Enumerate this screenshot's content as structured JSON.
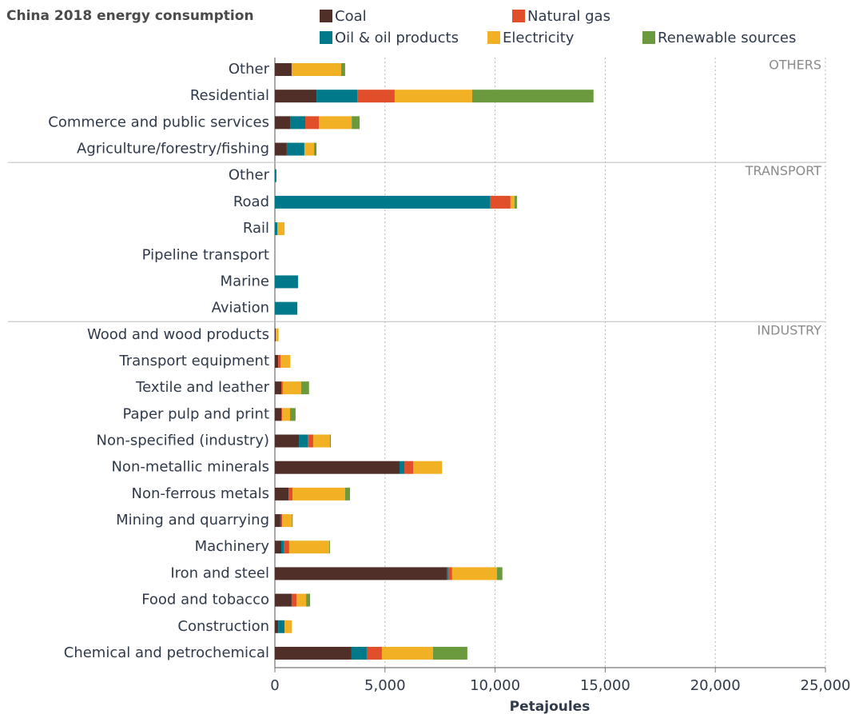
{
  "chart_data": {
    "type": "stacked_barh",
    "title": "China 2018 energy consumption",
    "x_label": "Petajoules",
    "categories": [
      "Other",
      "Residential",
      "Commerce and public services",
      "Agriculture/forestry/fishing",
      "Other",
      "Road",
      "Rail",
      "Pipeline transport",
      "Marine",
      "Aviation",
      "Wood and wood products",
      "Transport equipment",
      "Textile and leather",
      "Paper pulp and print",
      "Non-specified (industry)",
      "Non-metallic minerals",
      "Non-ferrous metals",
      "Mining and quarrying",
      "Machinery",
      "Iron and steel",
      "Food and tobacco",
      "Construction",
      "Chemical and petrochemical"
    ],
    "category_groups": [
      "OTHERS",
      "OTHERS",
      "OTHERS",
      "OTHERS",
      "TRANSPORT",
      "TRANSPORT",
      "TRANSPORT",
      "TRANSPORT",
      "TRANSPORT",
      "TRANSPORT",
      "INDUSTRY",
      "INDUSTRY",
      "INDUSTRY",
      "INDUSTRY",
      "INDUSTRY",
      "INDUSTRY",
      "INDUSTRY",
      "INDUSTRY",
      "INDUSTRY",
      "INDUSTRY",
      "INDUSTRY",
      "INDUSTRY",
      "INDUSTRY"
    ],
    "series": [
      {
        "name": "Coal",
        "color": "#4f2f27",
        "values": [
          760,
          1890,
          690,
          540,
          0,
          0,
          0,
          0,
          0,
          0,
          40,
          150,
          290,
          290,
          1090,
          5660,
          620,
          250,
          290,
          7800,
          760,
          150,
          3480
        ]
      },
      {
        "name": "Oil & oil products",
        "color": "#007a8a",
        "values": [
          0,
          1850,
          690,
          800,
          70,
          9760,
          110,
          0,
          1050,
          1020,
          0,
          0,
          0,
          0,
          400,
          220,
          0,
          40,
          110,
          70,
          0,
          290,
          690
        ]
      },
      {
        "name": "Natural gas",
        "color": "#e04e2a",
        "values": [
          0,
          1700,
          620,
          0,
          0,
          940,
          0,
          0,
          0,
          0,
          0,
          110,
          70,
          40,
          250,
          400,
          180,
          40,
          250,
          180,
          220,
          0,
          690
        ]
      },
      {
        "name": "Electricity",
        "color": "#f2b124",
        "values": [
          2250,
          3520,
          1490,
          440,
          0,
          180,
          330,
          0,
          0,
          0,
          130,
          440,
          830,
          360,
          760,
          1310,
          2390,
          440,
          1810,
          2030,
          440,
          330,
          2320
        ]
      },
      {
        "name": "Renewable sources",
        "color": "#6a9a3d",
        "values": [
          180,
          5510,
          360,
          110,
          0,
          110,
          0,
          0,
          0,
          0,
          0,
          0,
          360,
          250,
          40,
          0,
          220,
          40,
          40,
          250,
          180,
          0,
          1560
        ]
      }
    ],
    "xlim": [
      0,
      25000
    ],
    "xticks": [
      0,
      {
        "value": 5000,
        "label": "5,000"
      },
      {
        "value": 10000,
        "label": "10,000"
      },
      {
        "value": 15000,
        "label": "15,000"
      },
      {
        "value": 20000,
        "label": "20,000"
      },
      {
        "value": 25000,
        "label": "25,000"
      }
    ],
    "grid": true
  }
}
